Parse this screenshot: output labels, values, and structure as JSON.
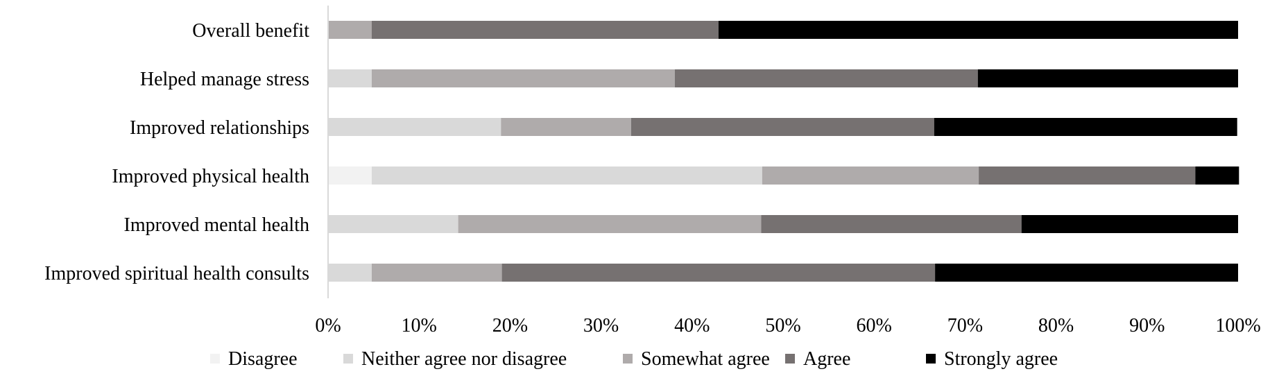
{
  "chart_data": {
    "type": "bar",
    "orientation": "horizontal",
    "stacked": "percent",
    "categories": [
      "Overall benefit",
      "Helped manage stress",
      "Improved relationships",
      "Improved physical health",
      "Improved mental health",
      "Improved spiritual health consults"
    ],
    "series": [
      {
        "name": "Disagree",
        "color": "#f2f2f2",
        "values": [
          0,
          0,
          0,
          4.8,
          0,
          0
        ]
      },
      {
        "name": "Neither agree nor disagree",
        "color": "#d9d9d9",
        "values": [
          0,
          4.8,
          19.0,
          42.9,
          14.3,
          4.8
        ]
      },
      {
        "name": "Somewhat agree",
        "color": "#afabab",
        "values": [
          4.8,
          33.3,
          14.3,
          23.8,
          33.3,
          14.3
        ]
      },
      {
        "name": "Agree",
        "color": "#767171",
        "values": [
          38.1,
          33.3,
          33.3,
          23.8,
          28.6,
          47.6
        ]
      },
      {
        "name": "Strongly agree",
        "color": "#000000",
        "values": [
          57.1,
          28.6,
          33.3,
          4.8,
          23.8,
          33.3
        ]
      }
    ],
    "xlim": [
      0,
      100
    ],
    "x_ticks": [
      "0%",
      "10%",
      "20%",
      "30%",
      "40%",
      "50%",
      "60%",
      "70%",
      "80%",
      "90%",
      "100%"
    ],
    "title": "",
    "xlabel": "",
    "ylabel": "",
    "legend_position": "bottom",
    "grid": false
  }
}
